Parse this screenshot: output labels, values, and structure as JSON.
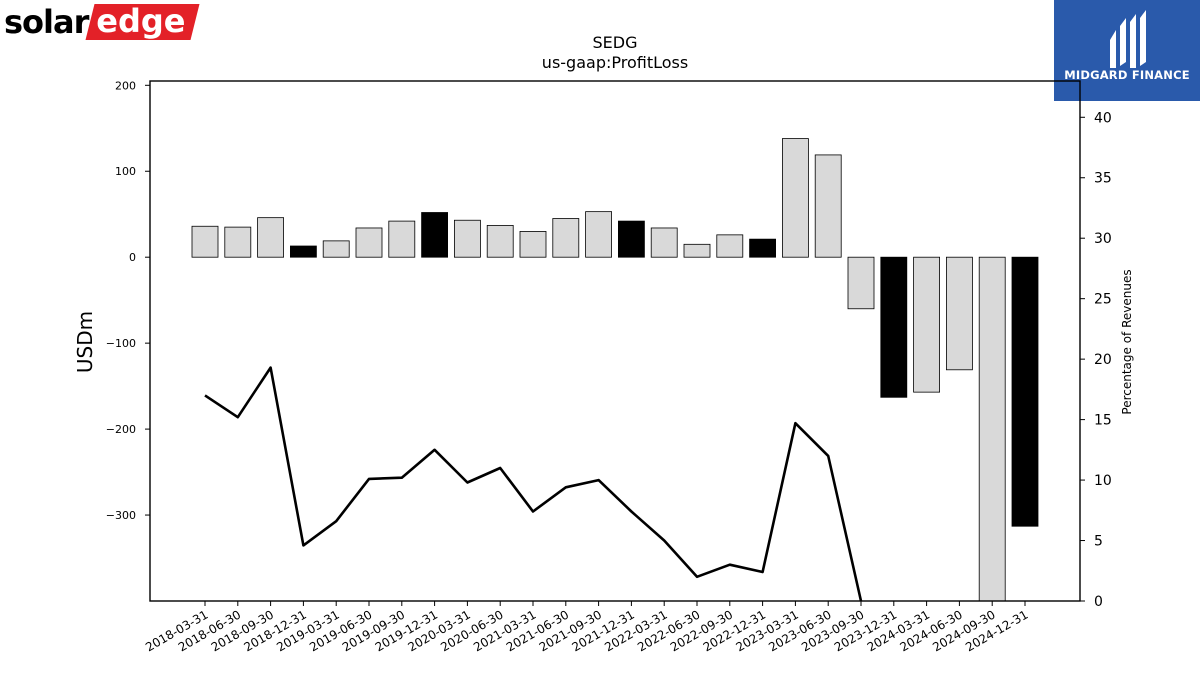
{
  "branding": {
    "left_logo_text_a": "solar",
    "left_logo_text_b": "edge",
    "right_logo_text": "MIDGARD FINANCE",
    "left_logo_color": "#e32128",
    "right_logo_bg": "#2a5aab"
  },
  "chart_data": {
    "type": "bar",
    "title": "SEDG",
    "subtitle": "us-gaap:ProfitLoss",
    "ylabel": "USDm",
    "y2label": "Percentage of Revenues",
    "ylim": [
      -400,
      205
    ],
    "y2lim": [
      0,
      43
    ],
    "yticks": [
      200,
      100,
      0,
      -100,
      -200,
      -300
    ],
    "y2ticks": [
      0,
      5,
      10,
      15,
      20,
      25,
      30,
      35,
      40
    ],
    "categories": [
      "2018-03-31",
      "2018-06-30",
      "2018-09-30",
      "2018-12-31",
      "2019-03-31",
      "2019-06-30",
      "2019-09-30",
      "2019-12-31",
      "2020-03-31",
      "2020-06-30",
      "2021-03-31",
      "2021-06-30",
      "2021-09-30",
      "2021-12-31",
      "2022-03-31",
      "2022-06-30",
      "2022-09-30",
      "2022-12-31",
      "2023-03-31",
      "2023-06-30",
      "2023-09-30",
      "2023-12-31",
      "2024-03-31",
      "2024-06-30",
      "2024-09-30",
      "2024-12-31"
    ],
    "series": [
      {
        "kind": "bar",
        "values": [
          36,
          35,
          46,
          13,
          19,
          34,
          42,
          52,
          43,
          37,
          30,
          45,
          53,
          42,
          34,
          15,
          26,
          21,
          138,
          119,
          -60,
          -163,
          -157,
          -131,
          -400,
          -313
        ],
        "highlight": [
          false,
          false,
          false,
          true,
          false,
          false,
          false,
          true,
          false,
          false,
          false,
          false,
          false,
          true,
          false,
          false,
          false,
          true,
          false,
          false,
          false,
          true,
          false,
          false,
          false,
          true
        ],
        "colors": {
          "normal": "#d9d9d9",
          "highlight": "#000000",
          "edge": "#000000"
        }
      },
      {
        "kind": "line",
        "axis": "right",
        "values": [
          17.0,
          15.2,
          19.3,
          4.6,
          6.6,
          10.1,
          10.2,
          12.5,
          9.8,
          11.0,
          7.4,
          9.4,
          10.0,
          7.4,
          5.0,
          2.0,
          3.0,
          2.4,
          14.7,
          12.0,
          0.0,
          null,
          null,
          null,
          null,
          null
        ],
        "color": "#000000"
      }
    ]
  }
}
